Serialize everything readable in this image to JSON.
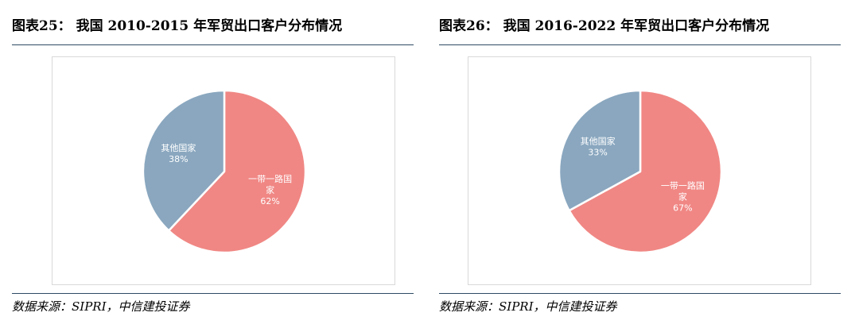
{
  "panels": [
    {
      "title": "图表25： 我国 2010-2015 年军贸出口客户分布情况",
      "source": "数据来源：SIPRI，中信建投证券"
    },
    {
      "title": "图表26： 我国 2016-2022 年军贸出口客户分布情况",
      "source": "数据来源：SIPRI，中信建投证券"
    }
  ],
  "chart_data": [
    {
      "type": "pie",
      "slices": [
        {
          "label_lines": [
            "一带一路国",
            "家"
          ],
          "value": 62,
          "value_label": "62%",
          "color": "#f08784"
        },
        {
          "label_lines": [
            "其他国家"
          ],
          "value": 38,
          "value_label": "38%",
          "color": "#8aa7bf"
        }
      ],
      "start_angle_deg": 0,
      "direction": "clockwise",
      "legend": "none"
    },
    {
      "type": "pie",
      "slices": [
        {
          "label_lines": [
            "一带一路国",
            "家"
          ],
          "value": 67,
          "value_label": "67%",
          "color": "#f08784"
        },
        {
          "label_lines": [
            "其他国家"
          ],
          "value": 33,
          "value_label": "33%",
          "color": "#8aa7bf"
        }
      ],
      "start_angle_deg": 0,
      "direction": "clockwise",
      "legend": "none"
    }
  ]
}
